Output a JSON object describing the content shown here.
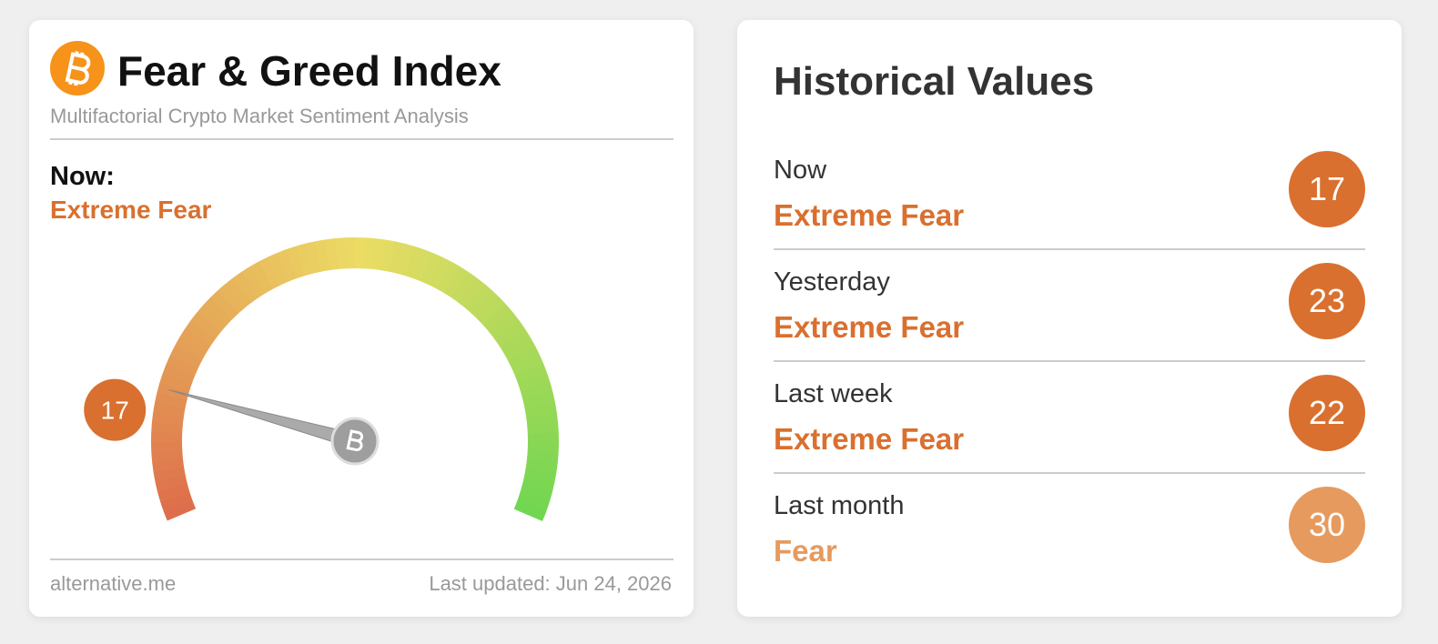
{
  "index_card": {
    "title": "Fear & Greed Index",
    "subtitle": "Multifactorial Crypto Market Sentiment Analysis",
    "now_label": "Now:",
    "now_classification": "Extreme Fear",
    "now_color": "#d9702f",
    "gauge": {
      "value": 17,
      "scale": [
        0,
        100
      ]
    },
    "source": "alternative.me",
    "last_updated": "Last updated: Jun 24, 2026"
  },
  "history_card": {
    "title": "Historical Values",
    "rows": [
      {
        "label": "Now",
        "classification": "Extreme Fear",
        "value": 17,
        "color": "#d9702f"
      },
      {
        "label": "Yesterday",
        "classification": "Extreme Fear",
        "value": 23,
        "color": "#d9702f"
      },
      {
        "label": "Last week",
        "classification": "Extreme Fear",
        "value": 22,
        "color": "#d9702f"
      },
      {
        "label": "Last month",
        "classification": "Fear",
        "value": 30,
        "color": "#e69a5e"
      }
    ]
  }
}
